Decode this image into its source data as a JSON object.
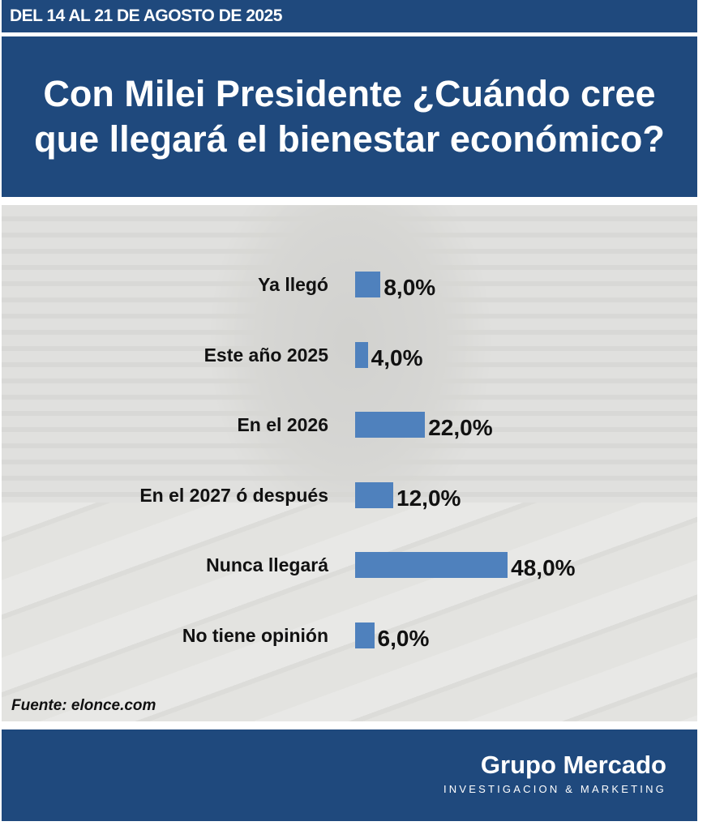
{
  "header": {
    "dates": "DEL 14 AL 21 DE AGOSTO DE 2025",
    "title": "Con Milei Presidente ¿Cuándo cree que llegará el bienestar económico?"
  },
  "source": "Fuente: elonce.com",
  "footer": {
    "brand": "Grupo Mercado",
    "tagline": "INVESTIGACION & MARKETING"
  },
  "colors": {
    "navy": "#1f497d",
    "bar": "#4f81bd"
  },
  "chart_data": {
    "type": "bar",
    "orientation": "horizontal",
    "title": "Con Milei Presidente ¿Cuándo cree que llegará el bienestar económico?",
    "categories": [
      "Ya llegó",
      "Este año 2025",
      "En el 2026",
      "En el 2027 ó después",
      "Nunca llegará",
      "No tiene opinión"
    ],
    "values": [
      8.0,
      4.0,
      22.0,
      12.0,
      48.0,
      6.0
    ],
    "value_labels": [
      "8,0%",
      "4,0%",
      "22,0%",
      "12,0%",
      "48,0%",
      "6,0%"
    ],
    "xlim": [
      0,
      50
    ],
    "unit": "%"
  }
}
